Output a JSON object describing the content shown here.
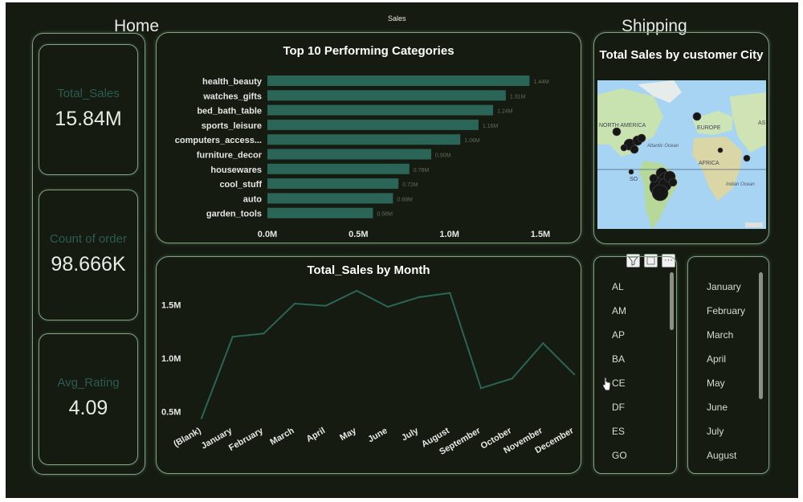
{
  "page": {
    "title": "Sales",
    "home_label": "Home",
    "shipping_label": "Shipping"
  },
  "kpis": [
    {
      "label": "Total_Sales",
      "value": "15.84M"
    },
    {
      "label": "Count of order",
      "value": "98.666K"
    },
    {
      "label": "Avg_Rating",
      "value": "4.09"
    }
  ],
  "bar_chart": {
    "title": "Top 10 Performing Categories",
    "bar_color": "#2a6558",
    "chart_data": {
      "type": "bar",
      "orientation": "horizontal",
      "title": "Top 10 Performing Categories",
      "categories": [
        "health_beauty",
        "watches_gifts",
        "bed_bath_table",
        "sports_leisure",
        "computers_access...",
        "furniture_decor",
        "housewares",
        "cool_stuff",
        "auto",
        "garden_tools"
      ],
      "values": [
        1.44,
        1.31,
        1.24,
        1.16,
        1.06,
        0.9,
        0.78,
        0.72,
        0.69,
        0.58
      ],
      "data_labels": [
        "1.44M",
        "1.31M",
        "1.24M",
        "1.16M",
        "1.06M",
        "0.90M",
        "0.78M",
        "0.72M",
        "0.69M",
        "0.58M"
      ],
      "xlim": [
        0,
        1.5
      ],
      "x_ticks": [
        "0.0M",
        "0.5M",
        "1.0M",
        "1.5M"
      ],
      "grid": false
    }
  },
  "line_chart": {
    "title": "Total_Sales by Month",
    "line_color": "#2a6558",
    "chart_data": {
      "type": "line",
      "title": "Total_Sales by Month",
      "categories": [
        "(Blank)",
        "January",
        "February",
        "March",
        "April",
        "May",
        "June",
        "July",
        "August",
        "September",
        "October",
        "November",
        "December"
      ],
      "values": [
        0.44,
        1.2,
        1.23,
        1.51,
        1.49,
        1.63,
        1.48,
        1.57,
        1.61,
        0.72,
        0.81,
        1.14,
        0.85
      ],
      "ylim": [
        0.4,
        1.75
      ],
      "y_ticks": [
        "0.5M",
        "1.0M",
        "1.5M"
      ],
      "grid": false
    }
  },
  "map": {
    "title": "Total Sales by customer City",
    "labels": [
      "NORTH AMERICA",
      "EUROPE",
      "AS",
      "Atlantic Ocean",
      "AFRICA",
      "SO",
      "Indian Ocean"
    ]
  },
  "state_slicer": {
    "items": [
      "AL",
      "AM",
      "AP",
      "BA",
      "CE",
      "DF",
      "ES",
      "GO"
    ]
  },
  "month_slicer": {
    "items": [
      "January",
      "February",
      "March",
      "April",
      "May",
      "June",
      "July",
      "August"
    ]
  },
  "toolbar": {
    "filter_icon": "filter-icon",
    "focus_icon": "focus-mode-icon",
    "more_icon": "more-options-icon",
    "more_label": "···"
  }
}
